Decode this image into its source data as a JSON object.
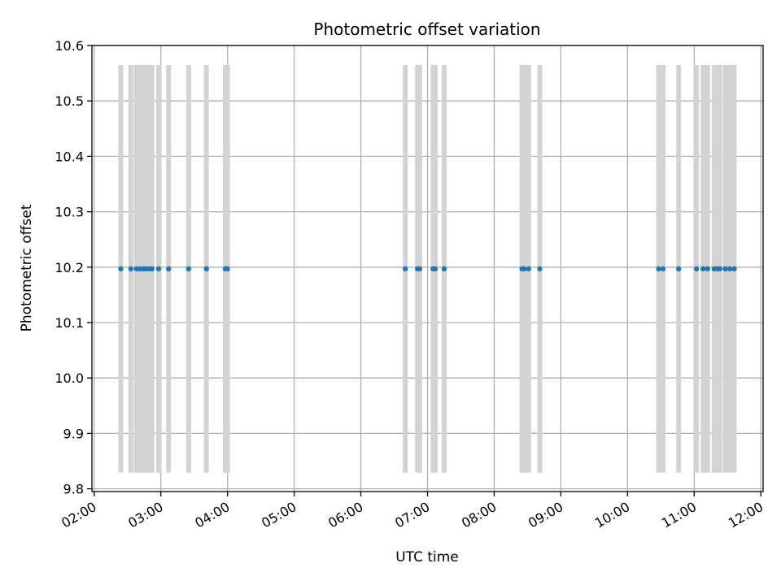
{
  "chart_data": {
    "type": "scatter",
    "title": "Photometric offset variation",
    "xlabel": "UTC time",
    "ylabel": "Photometric offset",
    "xlim": [
      "01:58",
      "12:02"
    ],
    "ylim": [
      9.795,
      10.6
    ],
    "x_tick_labels": [
      "02:00",
      "03:00",
      "04:00",
      "05:00",
      "06:00",
      "07:00",
      "08:00",
      "09:00",
      "10:00",
      "11:00",
      "12:00"
    ],
    "y_tick_labels": [
      "9.8",
      "9.9",
      "10.0",
      "10.1",
      "10.2",
      "10.3",
      "10.4",
      "10.5",
      "10.6"
    ],
    "grid": true,
    "series": [
      {
        "x": [
          "02:24",
          "02:33",
          "02:38",
          "02:41",
          "02:44",
          "02:46",
          "02:49",
          "02:52",
          "02:58",
          "03:07",
          "03:25",
          "03:41",
          "03:58",
          "04:00",
          "06:40",
          "06:51",
          "06:53",
          "07:05",
          "07:07",
          "07:15",
          "08:25",
          "08:27",
          "08:31",
          "08:41",
          "10:28",
          "10:32",
          "10:46",
          "11:02",
          "11:08",
          "11:12",
          "11:18",
          "11:21",
          "11:23",
          "11:28",
          "11:32",
          "11:36"
        ],
        "y": [
          10.197,
          10.197,
          10.197,
          10.197,
          10.197,
          10.197,
          10.197,
          10.197,
          10.197,
          10.197,
          10.197,
          10.197,
          10.197,
          10.197,
          10.197,
          10.197,
          10.197,
          10.197,
          10.197,
          10.197,
          10.197,
          10.197,
          10.197,
          10.197,
          10.197,
          10.197,
          10.197,
          10.197,
          10.197,
          10.197,
          10.197,
          10.197,
          10.197,
          10.197,
          10.197,
          10.197
        ],
        "error_y": [
          0.368,
          0.368,
          0.368,
          0.368,
          0.368,
          0.368,
          0.368,
          0.368,
          0.368,
          0.368,
          0.368,
          0.368,
          0.368,
          0.368,
          0.368,
          0.368,
          0.368,
          0.368,
          0.368,
          0.368,
          0.368,
          0.368,
          0.368,
          0.368,
          0.368,
          0.368,
          0.368,
          0.368,
          0.368,
          0.368,
          0.368,
          0.368,
          0.368,
          0.368,
          0.368,
          0.368
        ]
      }
    ],
    "colors": {
      "point": "#1f77b4",
      "errorbar": "#d3d3d3",
      "grid": "#b0b0b0",
      "axes": "#000000"
    }
  }
}
